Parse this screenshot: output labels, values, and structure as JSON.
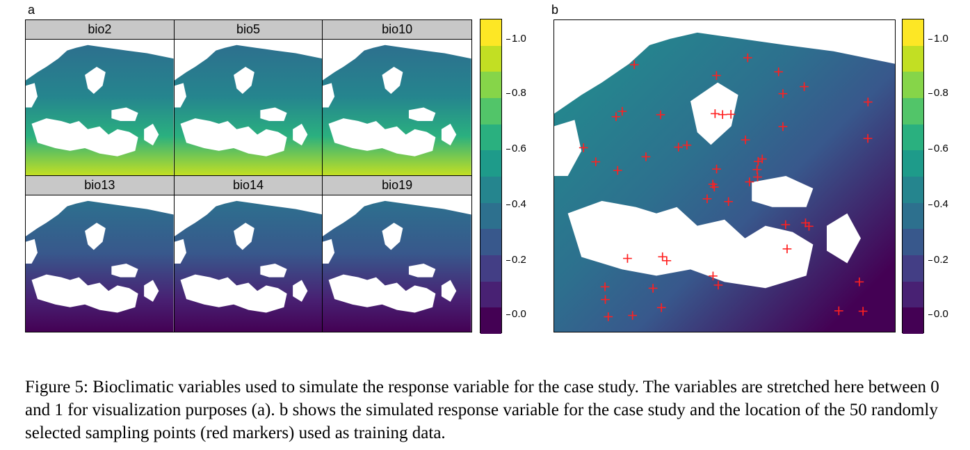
{
  "figure": {
    "panel_a_label": "a",
    "panel_b_label": "b",
    "facets": [
      {
        "label": "bio2",
        "gradient": "warm-south"
      },
      {
        "label": "bio5",
        "gradient": "warm-south"
      },
      {
        "label": "bio10",
        "gradient": "warm-south"
      },
      {
        "label": "bio13",
        "gradient": "dry-south"
      },
      {
        "label": "bio14",
        "gradient": "dry-south"
      },
      {
        "label": "bio19",
        "gradient": "dry-south"
      }
    ],
    "colorbar": {
      "ticks": [
        "1.0",
        "0.8",
        "0.6",
        "0.4",
        "0.2",
        "0.0"
      ],
      "colors": [
        "#fde725",
        "#c2df23",
        "#86d549",
        "#52c569",
        "#2ab07f",
        "#1e9b8a",
        "#25858e",
        "#2d708e",
        "#38588c",
        "#433e85",
        "#482173",
        "#440154"
      ]
    },
    "sampling_points": {
      "count": 50,
      "marker_color": "#ff2020"
    },
    "caption": "Figure 5: Bioclimatic variables used to simulate the response variable for the case study. The variables are stretched here between 0 and 1 for visualization purposes (a). b shows the simulated response variable for the case study and the location of the 50 randomly selected sampling points (red markers) used as training data."
  }
}
